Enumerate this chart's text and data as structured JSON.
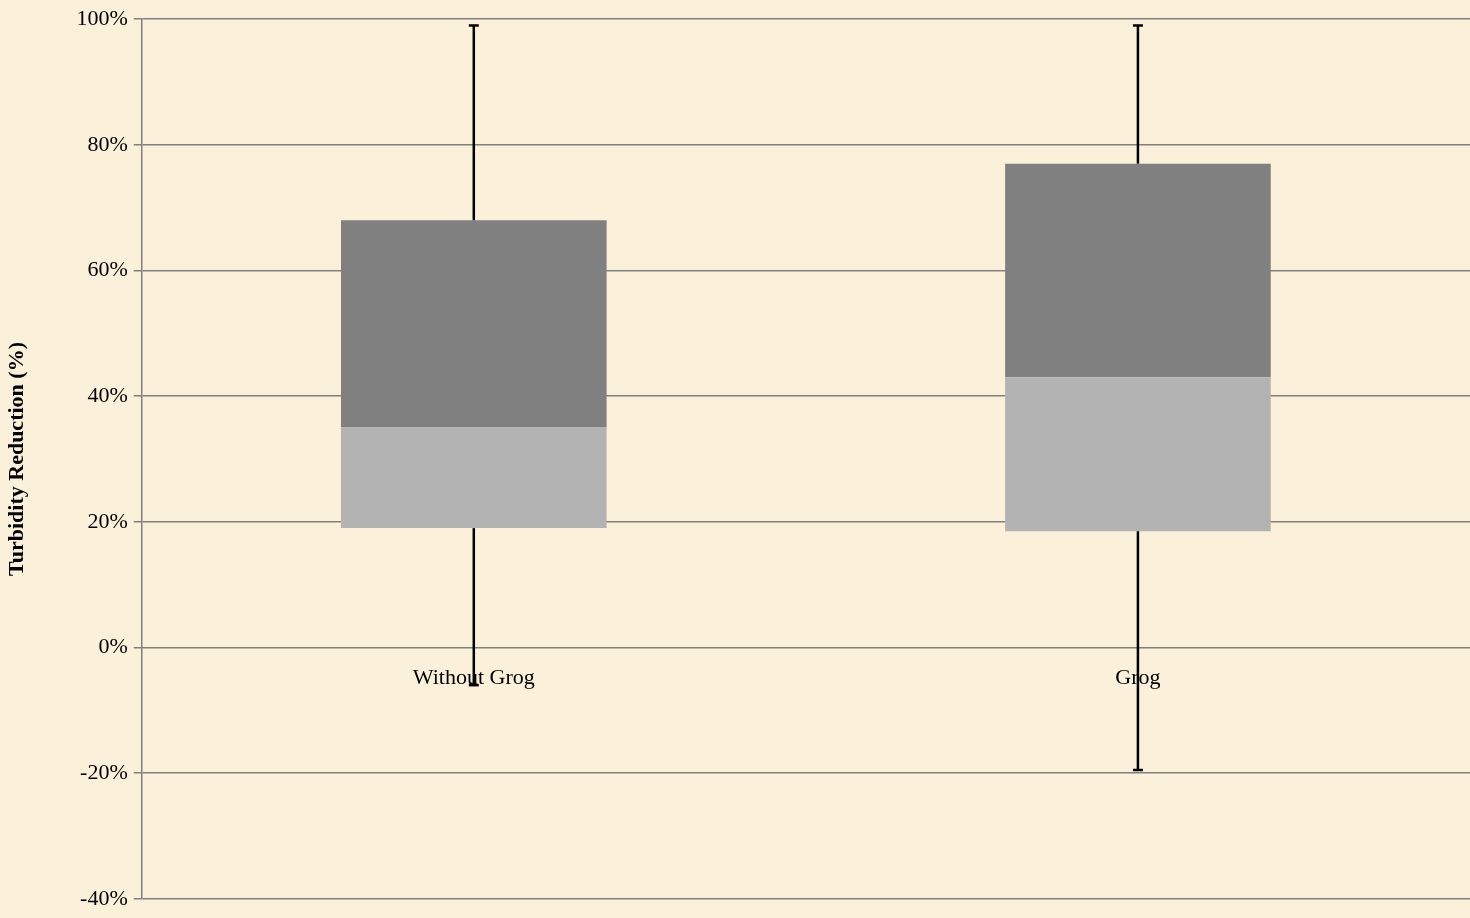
{
  "chart_data": {
    "type": "box",
    "ylabel": "Turbidity Reduction (%)",
    "categories": [
      "Without Grog",
      "Grog"
    ],
    "boxes": [
      {
        "low": -6,
        "q1": 19,
        "median": 35,
        "q3": 68,
        "high": 99
      },
      {
        "low": -19.5,
        "q1": 18.5,
        "median": 43,
        "q3": 77,
        "high": 99
      }
    ],
    "ylim": [
      -40,
      100
    ],
    "yticks": [
      {
        "value": -40,
        "label": "-40%"
      },
      {
        "value": -20,
        "label": "-20%"
      },
      {
        "value": 0,
        "label": "0%"
      },
      {
        "value": 20,
        "label": "20%"
      },
      {
        "value": 40,
        "label": "40%"
      },
      {
        "value": 60,
        "label": "60%"
      },
      {
        "value": 80,
        "label": "80%"
      },
      {
        "value": 100,
        "label": "100%"
      }
    ],
    "grid": "y",
    "legend": false
  }
}
